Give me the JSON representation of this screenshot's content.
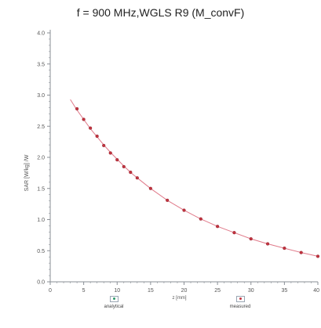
{
  "chart_data": {
    "type": "scatter",
    "title": "f = 900 MHz,WGLS R9 (M_convF)",
    "xlabel": "z [mm]",
    "ylabel": "SAR [W/kg] /W",
    "xlim": [
      0,
      40
    ],
    "ylim": [
      0,
      4.0
    ],
    "x_ticks": [
      "0",
      "5",
      "10",
      "15",
      "20",
      "25",
      "30",
      "35",
      "40"
    ],
    "y_ticks": [
      "0.0",
      "0.5",
      "1.0",
      "1.5",
      "2.0",
      "2.5",
      "3.0",
      "3.5",
      "4.0"
    ],
    "grid": false,
    "legend_position": "bottom",
    "series": [
      {
        "name": "analytical",
        "kind": "line",
        "color": "#e07a8a",
        "x": [
          3,
          4,
          5,
          6,
          7,
          8,
          9,
          10,
          11,
          12,
          13,
          15,
          17.5,
          20,
          22.5,
          25,
          27.5,
          30,
          32.5,
          35,
          37.5,
          40
        ],
        "y": [
          2.93,
          2.76,
          2.61,
          2.46,
          2.33,
          2.2,
          2.08,
          1.97,
          1.86,
          1.76,
          1.67,
          1.5,
          1.31,
          1.15,
          1.01,
          0.89,
          0.79,
          0.69,
          0.61,
          0.54,
          0.47,
          0.41
        ]
      },
      {
        "name": "measured",
        "kind": "points",
        "color": "#c2333f",
        "x": [
          4,
          5,
          6,
          7,
          8,
          9,
          10,
          11,
          12,
          13,
          15,
          17.5,
          20,
          22.5,
          25,
          27.5,
          30,
          32.5,
          35,
          37.5,
          40
        ],
        "y": [
          2.78,
          2.61,
          2.47,
          2.34,
          2.19,
          2.07,
          1.96,
          1.85,
          1.76,
          1.67,
          1.5,
          1.31,
          1.15,
          1.01,
          0.89,
          0.79,
          0.69,
          0.61,
          0.54,
          0.47,
          0.41
        ]
      }
    ],
    "colors": {
      "axis": "#8a8f96",
      "tick_text": "#555555",
      "legend_analytical": "#2f9a6a",
      "legend_measured": "#c2333f"
    }
  }
}
